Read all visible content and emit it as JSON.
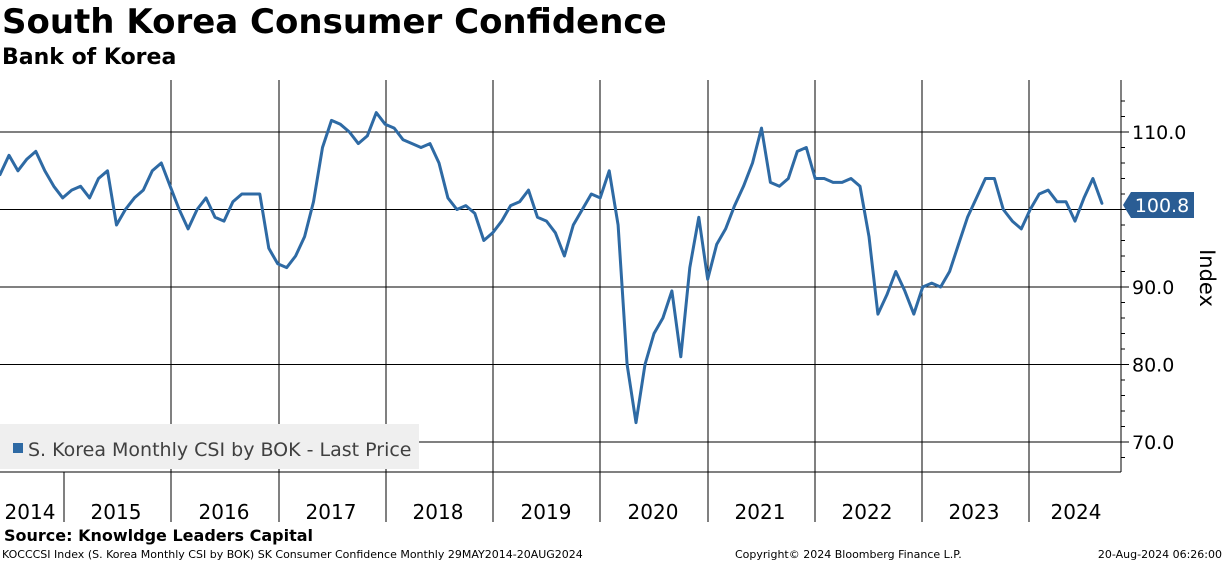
{
  "title": "South Korea Consumer Confidence",
  "subtitle": "Bank of Korea",
  "source": "Source: Knowldge Leaders Capital",
  "footer": {
    "left": "KOCCCSI Index (S. Korea Monthly CSI by BOK) SK Consumer Confidence  Monthly 29MAY2014-20AUG2024",
    "middle": "Copyright© 2024 Bloomberg Finance L.P.",
    "right": "20-Aug-2024 06:26:00"
  },
  "colors": {
    "series": "#2e6aa4",
    "last_price_box": "#2a5d94"
  },
  "chart_data": {
    "type": "line",
    "ylabel": "Index",
    "ylim": [
      66,
      116
    ],
    "y_ticks": [
      "110.0",
      "90.0",
      "80.0",
      "70.0"
    ],
    "x_tick_labels": [
      "2014",
      "2015",
      "2016",
      "2017",
      "2018",
      "2019",
      "2020",
      "2021",
      "2022",
      "2023",
      "2024"
    ],
    "legend": "S. Korea Monthly CSI by BOK - Last Price",
    "last_value_label": "100.8",
    "series": [
      {
        "name": "S. Korea Monthly CSI by BOK",
        "x_start": "2014-05",
        "values": [
          104.5,
          107.0,
          105.0,
          106.5,
          107.5,
          105.0,
          103.0,
          101.5,
          102.5,
          103.0,
          101.5,
          104.0,
          105.0,
          98.0,
          100.0,
          101.5,
          102.5,
          105.0,
          106.0,
          103.0,
          100.0,
          97.5,
          100.0,
          101.5,
          99.0,
          98.5,
          101.0,
          102.0,
          102.0,
          102.0,
          95.0,
          93.0,
          92.5,
          94.0,
          96.5,
          101.0,
          108.0,
          111.5,
          111.0,
          110.0,
          108.5,
          109.5,
          112.5,
          111.0,
          110.5,
          109.0,
          108.5,
          108.0,
          108.5,
          106.0,
          101.5,
          100.0,
          100.5,
          99.5,
          96.0,
          97.0,
          98.5,
          100.5,
          101.0,
          102.5,
          99.0,
          98.5,
          97.0,
          94.0,
          98.0,
          100.0,
          102.0,
          101.5,
          105.0,
          98.0,
          80.0,
          72.5,
          80.0,
          84.0,
          86.0,
          89.5,
          81.0,
          92.5,
          99.0,
          91.0,
          95.5,
          97.5,
          100.5,
          103.0,
          106.0,
          110.5,
          103.5,
          103.0,
          104.0,
          107.5,
          108.0,
          104.0,
          104.0,
          103.5,
          103.5,
          104.0,
          103.0,
          96.5,
          86.5,
          89.0,
          92.0,
          89.5,
          86.5,
          90.0,
          90.5,
          90.0,
          92.0,
          95.5,
          99.0,
          101.5,
          104.0,
          104.0,
          100.0,
          98.5,
          97.5,
          100.0,
          102.0,
          102.5,
          101.0,
          101.0,
          98.5,
          101.5,
          104.0,
          100.8
        ]
      }
    ]
  }
}
